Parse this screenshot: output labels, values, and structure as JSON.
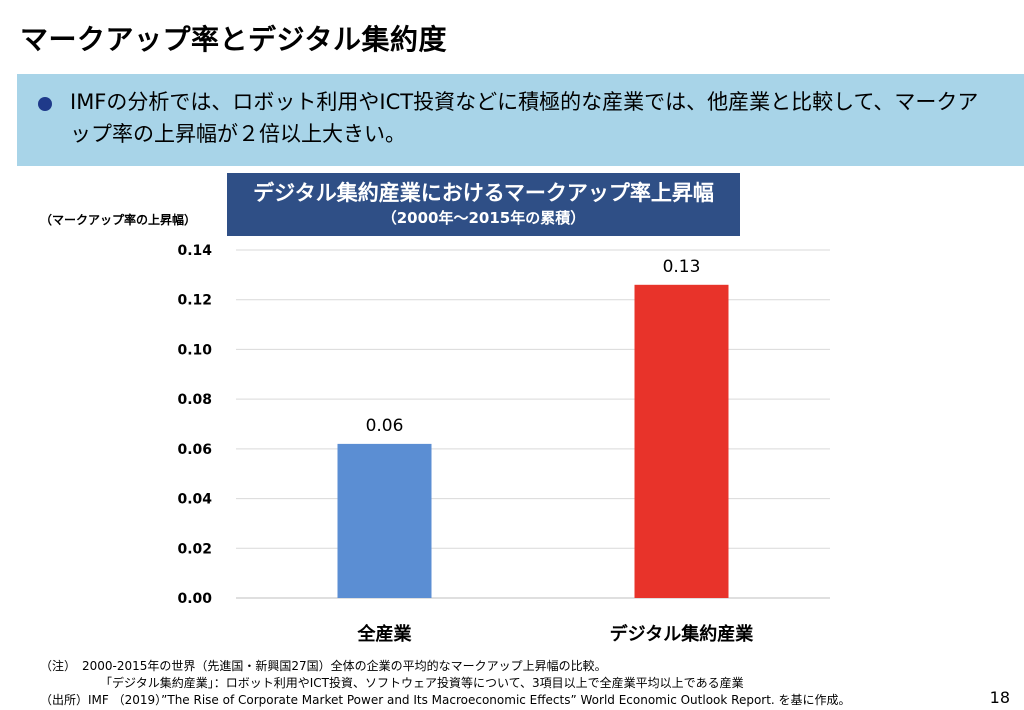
{
  "slide": {
    "title": "マークアップ率とデジタル集約度",
    "summary": "IMFの分析では、ロボット利用やICT投資などに積極的な産業では、他産業と比較して、マークアップ率の上昇幅が２倍以上大きい。",
    "page_number": "18",
    "notes": [
      "（注）　2000-2015年の世界（先進国・新興国27国）全体の企業の平均的なマークアップ上昇幅の比較。",
      "「デジタル集約産業」：ロボット利用やICT投資、ソフトウェア投資等について、3項目以上で全産業平均以上である産業",
      "（出所）IMF （2019）”The Rise of Corporate Market Power and Its Macroeconomic Effects” World Economic Outlook Report. を基に作成。"
    ]
  },
  "chart_data": {
    "type": "bar",
    "title": "デジタル集約産業におけるマークアップ率上昇幅",
    "subtitle": "（2000年～2015年の累積）",
    "ylabel": "（マークアップ率の上昇幅）",
    "xlabel": "",
    "categories": [
      "全産業",
      "デジタル集約産業"
    ],
    "values": [
      0.062,
      0.126
    ],
    "data_labels": [
      "0.06",
      "0.13"
    ],
    "colors": [
      "#5b8ed3",
      "#e8332a"
    ],
    "ylim": [
      0,
      0.14
    ],
    "yticks": [
      "0.00",
      "0.02",
      "0.04",
      "0.06",
      "0.08",
      "0.10",
      "0.12",
      "0.14"
    ],
    "grid": true,
    "legend": "none"
  }
}
